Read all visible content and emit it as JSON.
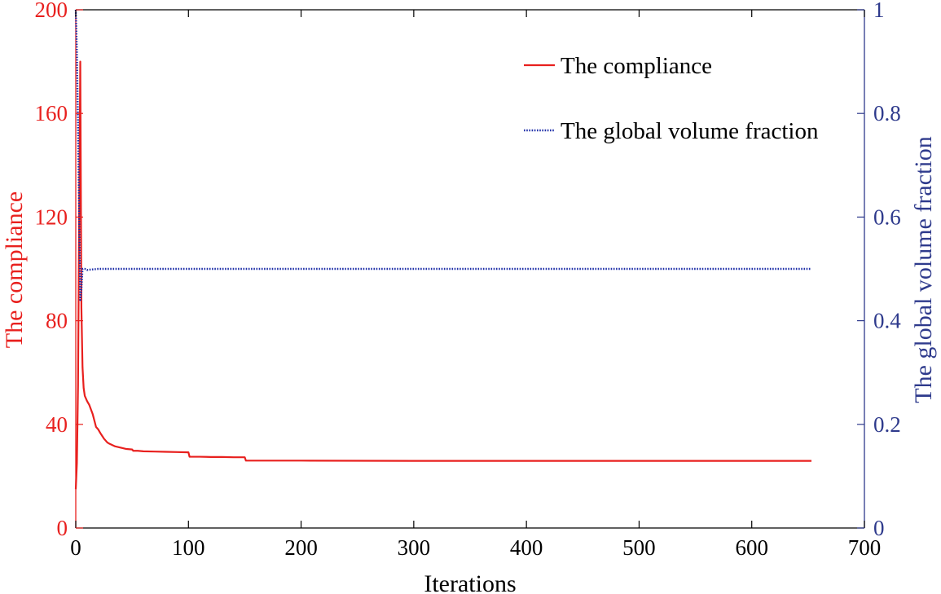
{
  "chart_data": {
    "type": "line",
    "title": "",
    "xlabel": "Iterations",
    "ylabel_left": "The compliance",
    "ylabel_right": "The global volume fraction",
    "xlim": [
      0,
      700
    ],
    "ylim_left": [
      0,
      200
    ],
    "ylim_right": [
      0,
      1
    ],
    "x_ticks": [
      "0",
      "100",
      "200",
      "300",
      "400",
      "500",
      "600",
      "700"
    ],
    "y_left_ticks": [
      "0",
      "40",
      "80",
      "120",
      "160",
      "200"
    ],
    "y_right_ticks": [
      "0",
      "0.2",
      "0.4",
      "0.6",
      "0.8",
      "1"
    ],
    "grid": false,
    "legend_position": "top-right",
    "colors": {
      "compliance": "#e8201e",
      "volume": "#1f2fa8",
      "right_axis": "#2e3a8c",
      "frame": "#000000"
    },
    "series": [
      {
        "name": "The compliance",
        "axis": "left",
        "style": "solid",
        "x": [
          0,
          1,
          2,
          3,
          4,
          5,
          6,
          7,
          8,
          10,
          12,
          15,
          18,
          20,
          22,
          25,
          28,
          30,
          35,
          40,
          45,
          50,
          51,
          55,
          60,
          70,
          80,
          90,
          100,
          101,
          110,
          120,
          130,
          140,
          150,
          151,
          160,
          200,
          300,
          400,
          500,
          600,
          653
        ],
        "y": [
          15,
          25,
          55,
          120,
          180,
          85,
          62,
          54,
          51,
          49,
          47.5,
          44,
          39,
          38,
          36.5,
          34.5,
          33,
          32.5,
          31.5,
          31,
          30.5,
          30.3,
          29.8,
          29.8,
          29.6,
          29.5,
          29.4,
          29.3,
          29.2,
          27.5,
          27.5,
          27.4,
          27.4,
          27.3,
          27.3,
          26,
          26,
          26,
          25.9,
          25.9,
          25.9,
          25.9,
          25.9
        ]
      },
      {
        "name": "The global volume fraction",
        "axis": "right",
        "style": "dotted",
        "x": [
          0,
          1,
          2,
          3,
          4,
          5,
          6,
          7,
          8,
          10,
          20,
          40,
          50,
          60,
          100,
          150,
          200,
          300,
          400,
          500,
          600,
          653
        ],
        "y": [
          1.0,
          0.92,
          0.78,
          0.6,
          0.44,
          0.46,
          0.5,
          0.5,
          0.5,
          0.498,
          0.5,
          0.5,
          0.5,
          0.5,
          0.5,
          0.5,
          0.5,
          0.5,
          0.5,
          0.5,
          0.5,
          0.5
        ]
      }
    ]
  }
}
